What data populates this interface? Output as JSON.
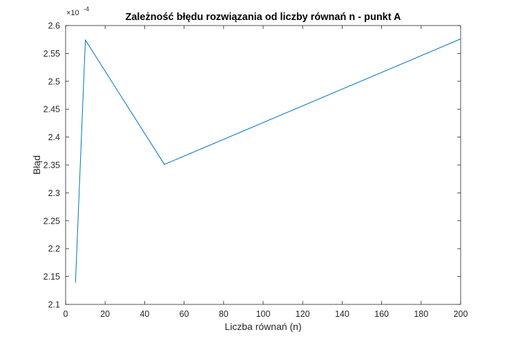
{
  "chart_data": {
    "type": "line",
    "title": "Zależność błędu rozwiązania od liczby równań n - punkt A",
    "xlabel": "Liczba równań (n)",
    "ylabel": "Błąd",
    "y_exponent": {
      "base": "×10",
      "power": "-4"
    },
    "xlim": [
      0,
      200
    ],
    "ylim": [
      2.1,
      2.6
    ],
    "x_ticks": [
      0,
      20,
      40,
      60,
      80,
      100,
      120,
      140,
      160,
      180,
      200
    ],
    "x_tick_labels": [
      "0",
      "20",
      "40",
      "60",
      "80",
      "100",
      "120",
      "140",
      "160",
      "180",
      "200"
    ],
    "y_ticks": [
      2.1,
      2.15,
      2.2,
      2.25,
      2.3,
      2.35,
      2.4,
      2.45,
      2.5,
      2.55,
      2.6
    ],
    "y_tick_labels": [
      "2.1",
      "2.15",
      "2.2",
      "2.25",
      "2.3",
      "2.35",
      "2.4",
      "2.45",
      "2.5",
      "2.55",
      "2.6"
    ],
    "grid": false,
    "series": [
      {
        "color": "#0072BD",
        "x": [
          5,
          10,
          50,
          200
        ],
        "y": [
          2.139,
          2.574,
          2.351,
          2.576
        ]
      }
    ]
  }
}
